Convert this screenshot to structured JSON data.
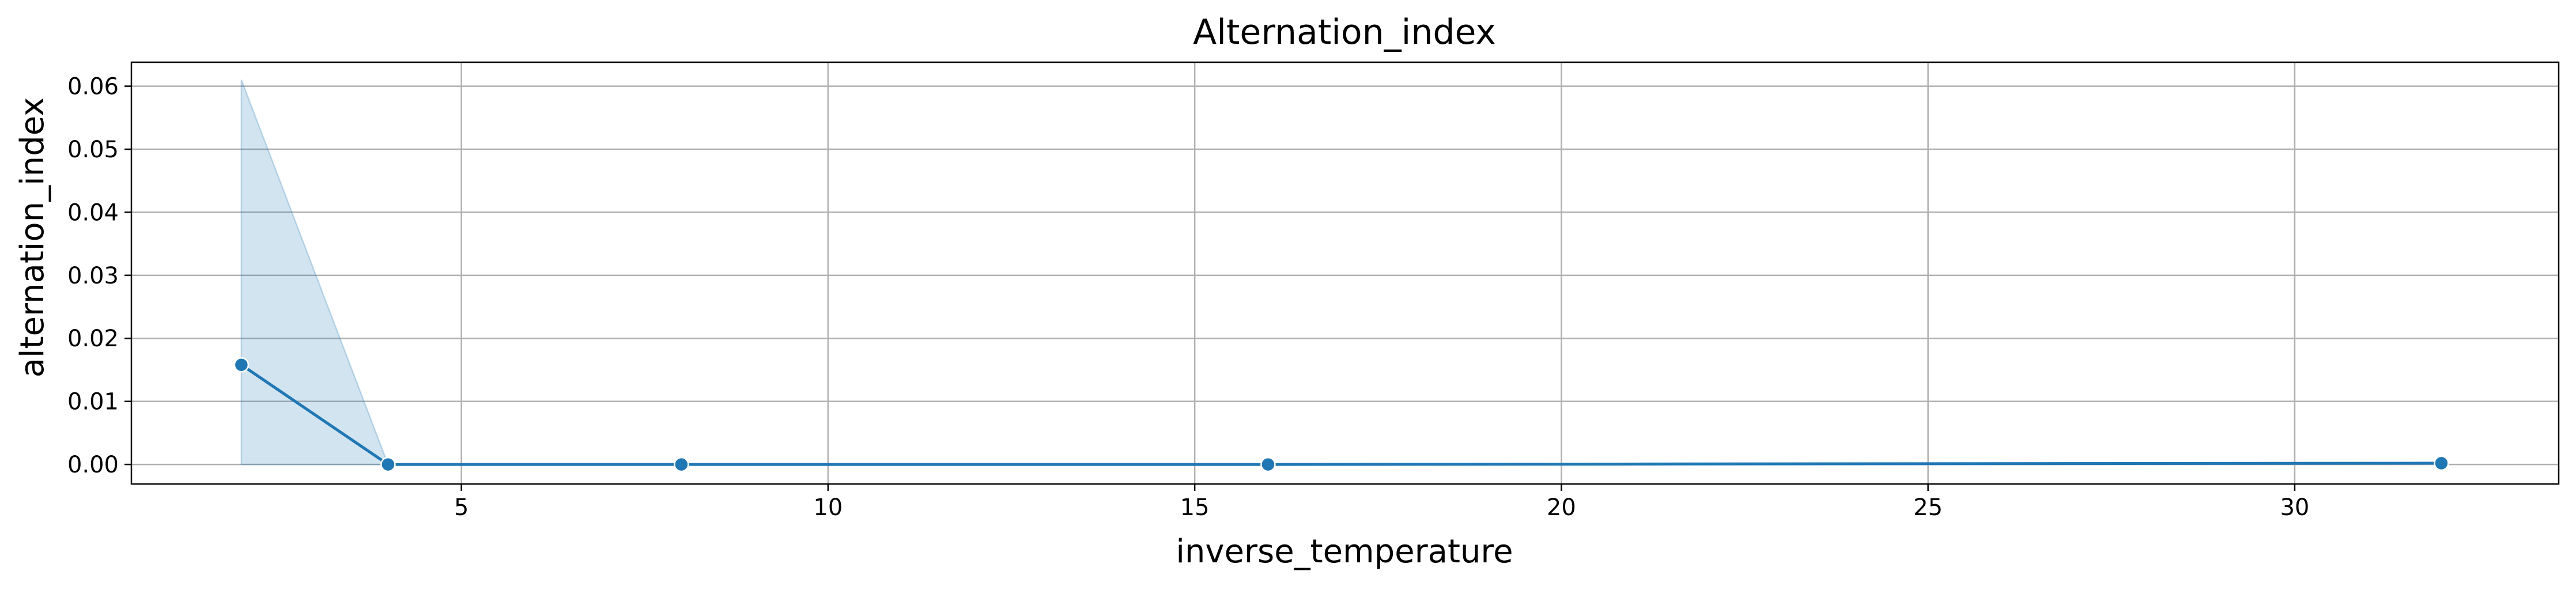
{
  "chart_data": {
    "type": "line",
    "title": "Alternation_index",
    "xlabel": "inverse_temperature",
    "ylabel": "alternation_index",
    "xlim": [
      0.5,
      33.6
    ],
    "ylim": [
      -0.0031,
      0.0638
    ],
    "x_ticks": [
      5,
      10,
      15,
      20,
      25,
      30
    ],
    "x_tick_labels": [
      "5",
      "10",
      "15",
      "20",
      "25",
      "30"
    ],
    "y_ticks": [
      0.0,
      0.01,
      0.02,
      0.03,
      0.04,
      0.05,
      0.06
    ],
    "y_tick_labels": [
      "0.00",
      "0.01",
      "0.02",
      "0.03",
      "0.04",
      "0.05",
      "0.06"
    ],
    "grid": true,
    "series": [
      {
        "x": [
          2,
          4,
          8,
          16,
          32
        ],
        "y": [
          0.0158,
          0.0,
          0.0,
          0.0,
          0.0002
        ],
        "ci_lower": [
          0.0,
          0.0,
          0.0,
          0.0,
          0.0002
        ],
        "ci_upper": [
          0.061,
          0.0,
          0.0,
          0.0,
          0.0002
        ],
        "color": "#1f77b4",
        "marker": "circle"
      }
    ]
  }
}
